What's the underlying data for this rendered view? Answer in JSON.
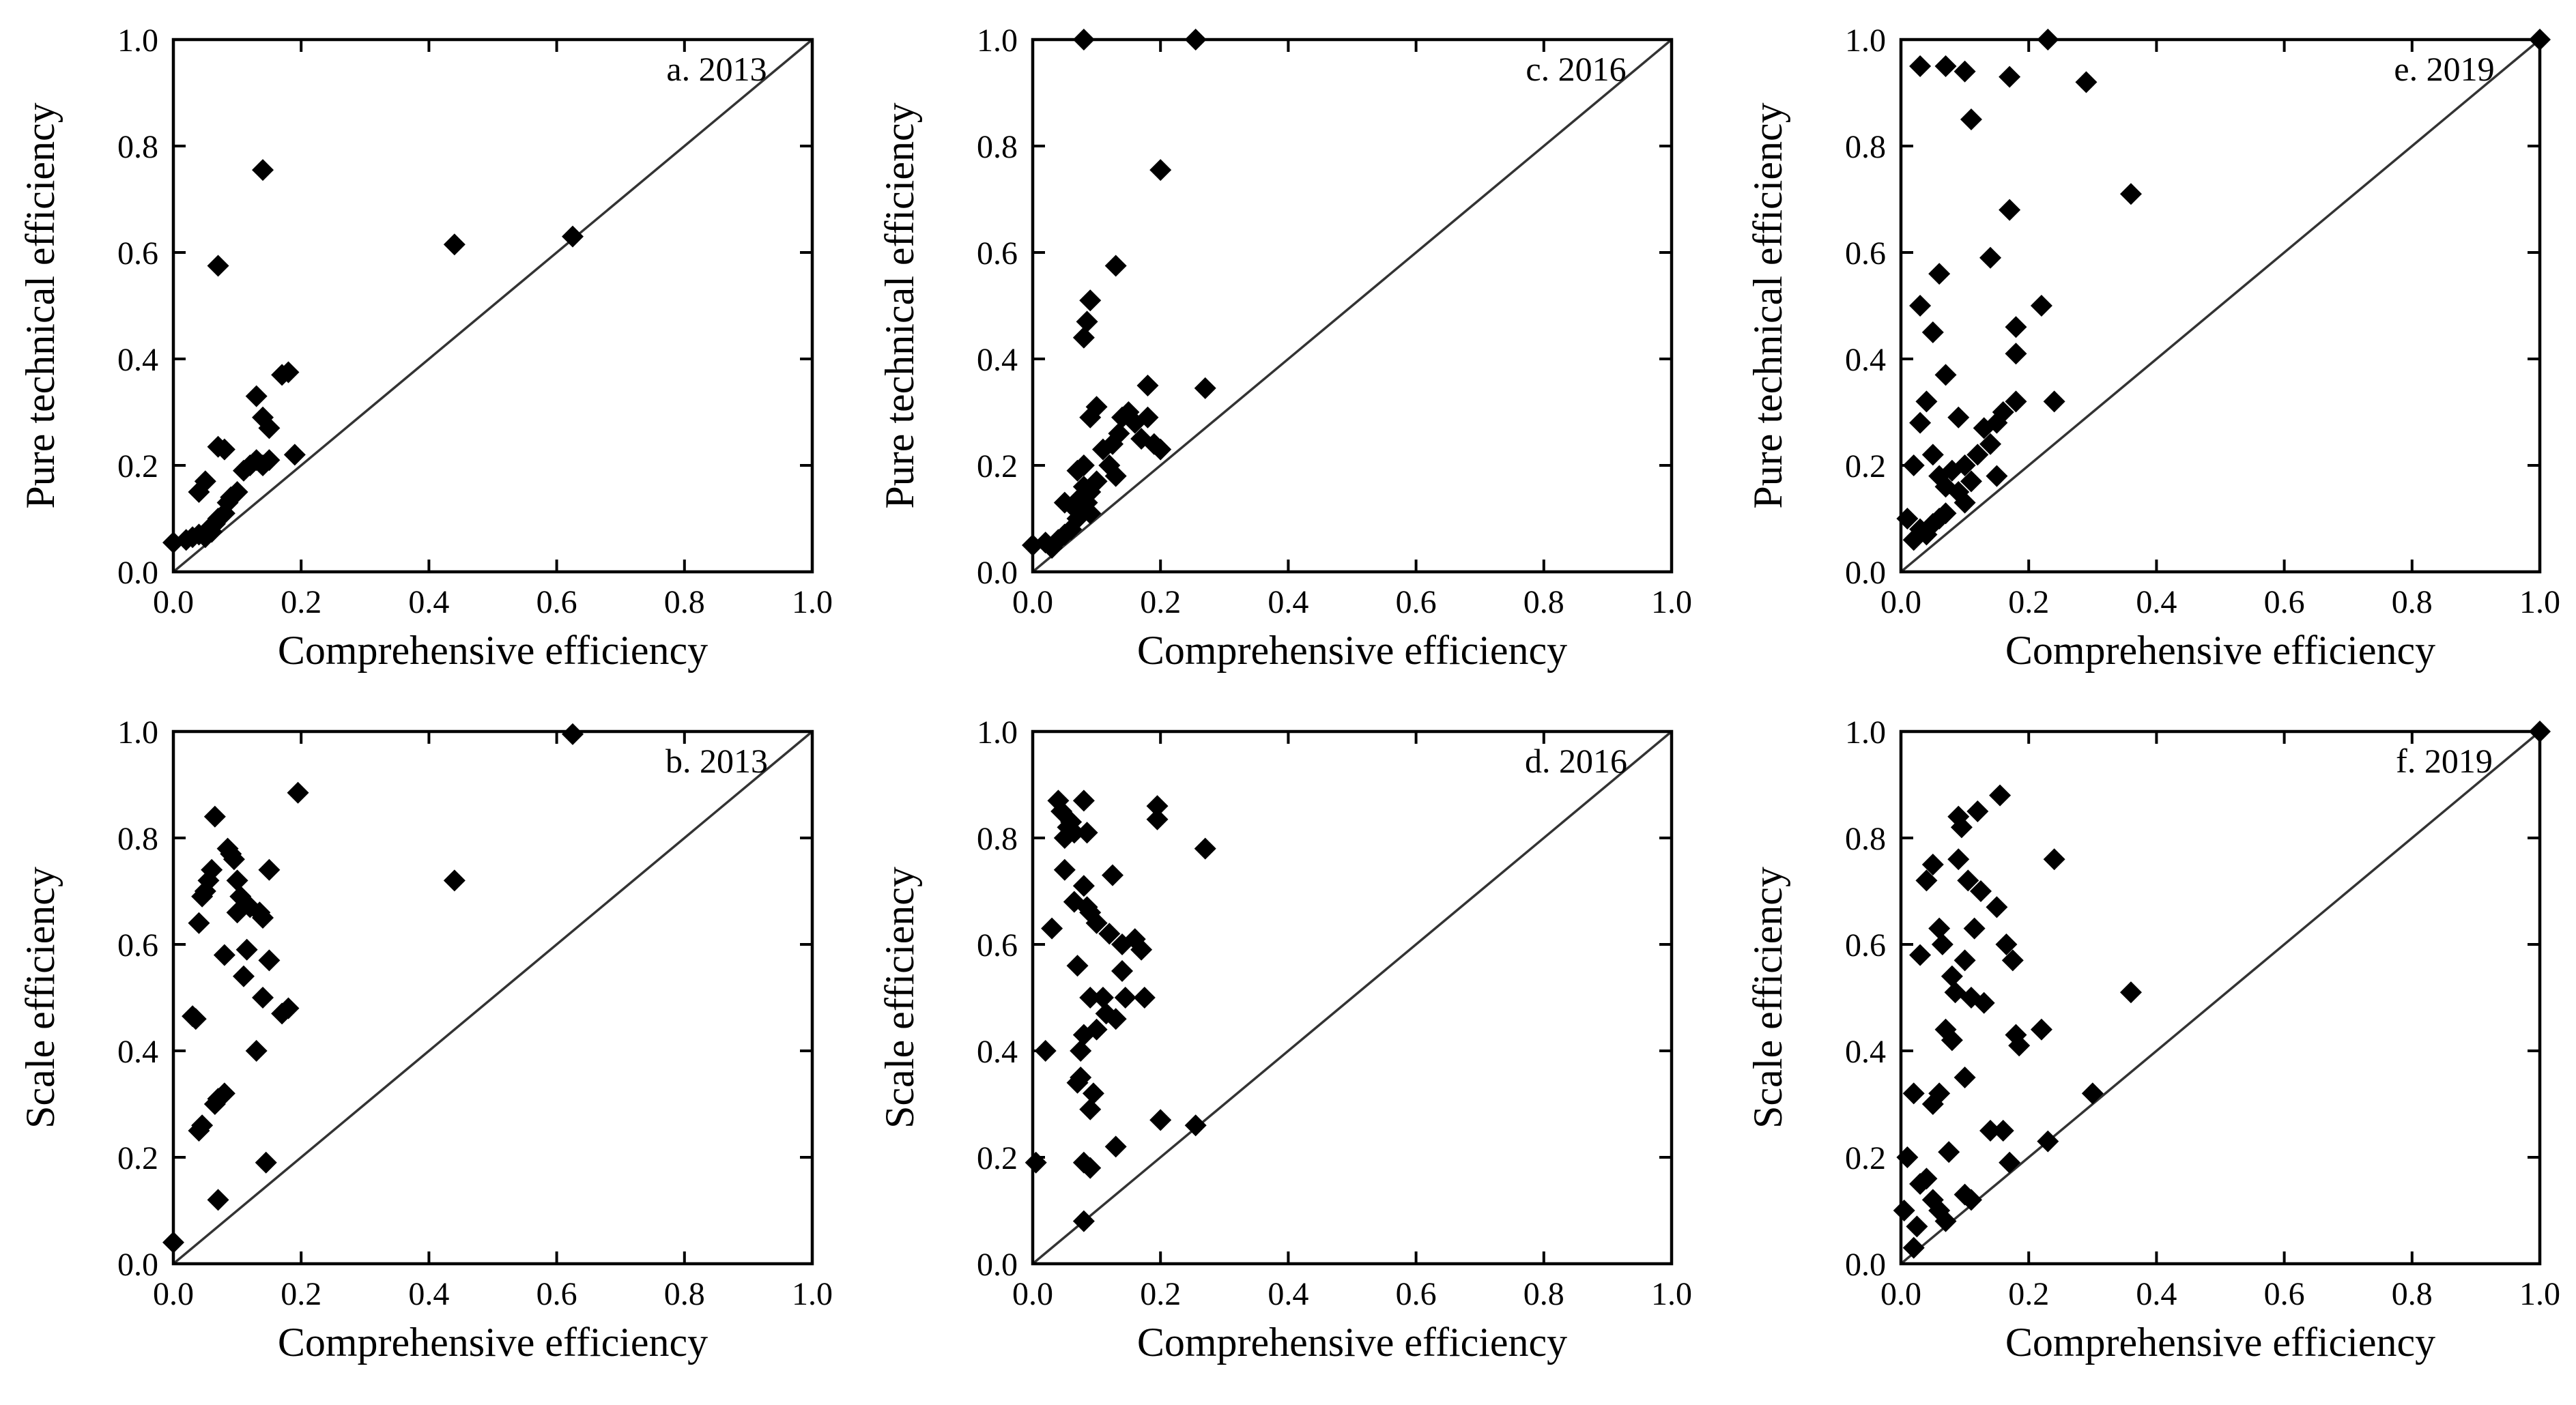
{
  "chart_data": [
    {
      "type": "scatter",
      "title": "a. 2013",
      "xlabel": "Comprehensive efficiency",
      "ylabel": "Pure technical efficiency",
      "xlim": [
        0,
        1
      ],
      "ylim": [
        0,
        1
      ],
      "xticks": [
        "0.0",
        "0.2",
        "0.4",
        "0.6",
        "0.8",
        "1.0"
      ],
      "yticks": [
        "0.0",
        "0.2",
        "0.4",
        "0.6",
        "0.8",
        "1.0"
      ],
      "diagonal": true,
      "points": [
        [
          0.0,
          0.055
        ],
        [
          0.02,
          0.06
        ],
        [
          0.03,
          0.065
        ],
        [
          0.04,
          0.07
        ],
        [
          0.05,
          0.065
        ],
        [
          0.055,
          0.08
        ],
        [
          0.06,
          0.075
        ],
        [
          0.065,
          0.09
        ],
        [
          0.07,
          0.1
        ],
        [
          0.08,
          0.11
        ],
        [
          0.085,
          0.13
        ],
        [
          0.09,
          0.14
        ],
        [
          0.1,
          0.15
        ],
        [
          0.11,
          0.19
        ],
        [
          0.12,
          0.2
        ],
        [
          0.13,
          0.21
        ],
        [
          0.14,
          0.2
        ],
        [
          0.15,
          0.21
        ],
        [
          0.13,
          0.33
        ],
        [
          0.14,
          0.29
        ],
        [
          0.15,
          0.27
        ],
        [
          0.17,
          0.37
        ],
        [
          0.18,
          0.375
        ],
        [
          0.19,
          0.22
        ],
        [
          0.07,
          0.235
        ],
        [
          0.08,
          0.23
        ],
        [
          0.04,
          0.15
        ],
        [
          0.05,
          0.17
        ],
        [
          0.07,
          0.575
        ],
        [
          0.14,
          0.755
        ],
        [
          0.44,
          0.615
        ],
        [
          0.625,
          0.63
        ]
      ]
    },
    {
      "type": "scatter",
      "title": "b. 2013",
      "xlabel": "Comprehensive efficiency",
      "ylabel": "Scale efficiency",
      "xlim": [
        0,
        1
      ],
      "ylim": [
        0,
        1
      ],
      "xticks": [
        "0.0",
        "0.2",
        "0.4",
        "0.6",
        "0.8",
        "1.0"
      ],
      "yticks": [
        "0.0",
        "0.2",
        "0.4",
        "0.6",
        "0.8",
        "1.0"
      ],
      "diagonal": true,
      "points": [
        [
          0.0,
          0.04
        ],
        [
          0.03,
          0.465
        ],
        [
          0.035,
          0.46
        ],
        [
          0.04,
          0.25
        ],
        [
          0.045,
          0.26
        ],
        [
          0.04,
          0.64
        ],
        [
          0.045,
          0.69
        ],
        [
          0.05,
          0.7
        ],
        [
          0.055,
          0.72
        ],
        [
          0.06,
          0.74
        ],
        [
          0.065,
          0.84
        ],
        [
          0.065,
          0.3
        ],
        [
          0.07,
          0.31
        ],
        [
          0.07,
          0.12
        ],
        [
          0.08,
          0.32
        ],
        [
          0.08,
          0.58
        ],
        [
          0.085,
          0.78
        ],
        [
          0.09,
          0.77
        ],
        [
          0.095,
          0.76
        ],
        [
          0.1,
          0.72
        ],
        [
          0.1,
          0.66
        ],
        [
          0.105,
          0.69
        ],
        [
          0.11,
          0.54
        ],
        [
          0.115,
          0.59
        ],
        [
          0.12,
          0.67
        ],
        [
          0.13,
          0.4
        ],
        [
          0.135,
          0.66
        ],
        [
          0.14,
          0.65
        ],
        [
          0.14,
          0.5
        ],
        [
          0.145,
          0.19
        ],
        [
          0.15,
          0.74
        ],
        [
          0.15,
          0.57
        ],
        [
          0.17,
          0.47
        ],
        [
          0.18,
          0.48
        ],
        [
          0.195,
          0.885
        ],
        [
          0.44,
          0.72
        ],
        [
          0.625,
          0.995
        ]
      ]
    },
    {
      "type": "scatter",
      "title": "c. 2016",
      "xlabel": "Comprehensive efficiency",
      "ylabel": "Pure technical efficiency",
      "xlim": [
        0,
        1
      ],
      "ylim": [
        0,
        1
      ],
      "xticks": [
        "0.0",
        "0.2",
        "0.4",
        "0.6",
        "0.8",
        "1.0"
      ],
      "yticks": [
        "0.0",
        "0.2",
        "0.4",
        "0.6",
        "0.8",
        "1.0"
      ],
      "diagonal": true,
      "points": [
        [
          0.0,
          0.05
        ],
        [
          0.02,
          0.055
        ],
        [
          0.03,
          0.045
        ],
        [
          0.04,
          0.06
        ],
        [
          0.05,
          0.07
        ],
        [
          0.05,
          0.13
        ],
        [
          0.06,
          0.08
        ],
        [
          0.065,
          0.12
        ],
        [
          0.07,
          0.1
        ],
        [
          0.07,
          0.19
        ],
        [
          0.075,
          0.14
        ],
        [
          0.08,
          0.16
        ],
        [
          0.08,
          0.2
        ],
        [
          0.085,
          0.13
        ],
        [
          0.09,
          0.11
        ],
        [
          0.09,
          0.15
        ],
        [
          0.1,
          0.17
        ],
        [
          0.11,
          0.23
        ],
        [
          0.12,
          0.2
        ],
        [
          0.125,
          0.24
        ],
        [
          0.13,
          0.18
        ],
        [
          0.135,
          0.26
        ],
        [
          0.14,
          0.29
        ],
        [
          0.15,
          0.3
        ],
        [
          0.16,
          0.28
        ],
        [
          0.17,
          0.25
        ],
        [
          0.18,
          0.29
        ],
        [
          0.19,
          0.24
        ],
        [
          0.2,
          0.23
        ],
        [
          0.18,
          0.35
        ],
        [
          0.27,
          0.345
        ],
        [
          0.09,
          0.29
        ],
        [
          0.1,
          0.31
        ],
        [
          0.08,
          0.44
        ],
        [
          0.085,
          0.47
        ],
        [
          0.09,
          0.51
        ],
        [
          0.13,
          0.575
        ],
        [
          0.2,
          0.755
        ],
        [
          0.08,
          1.0
        ],
        [
          0.255,
          1.0
        ]
      ]
    },
    {
      "type": "scatter",
      "title": "d. 2016",
      "xlabel": "Comprehensive efficiency",
      "ylabel": "Scale efficiency",
      "xlim": [
        0,
        1
      ],
      "ylim": [
        0,
        1
      ],
      "xticks": [
        "0.0",
        "0.2",
        "0.4",
        "0.6",
        "0.8",
        "1.0"
      ],
      "yticks": [
        "0.0",
        "0.2",
        "0.4",
        "0.6",
        "0.8",
        "1.0"
      ],
      "diagonal": true,
      "points": [
        [
          0.005,
          0.19
        ],
        [
          0.02,
          0.4
        ],
        [
          0.03,
          0.63
        ],
        [
          0.04,
          0.87
        ],
        [
          0.045,
          0.85
        ],
        [
          0.05,
          0.8
        ],
        [
          0.05,
          0.74
        ],
        [
          0.055,
          0.82
        ],
        [
          0.06,
          0.83
        ],
        [
          0.065,
          0.68
        ],
        [
          0.065,
          0.81
        ],
        [
          0.07,
          0.56
        ],
        [
          0.07,
          0.34
        ],
        [
          0.075,
          0.35
        ],
        [
          0.075,
          0.4
        ],
        [
          0.08,
          0.43
        ],
        [
          0.08,
          0.71
        ],
        [
          0.08,
          0.87
        ],
        [
          0.085,
          0.81
        ],
        [
          0.085,
          0.67
        ],
        [
          0.09,
          0.66
        ],
        [
          0.09,
          0.5
        ],
        [
          0.09,
          0.29
        ],
        [
          0.095,
          0.32
        ],
        [
          0.08,
          0.19
        ],
        [
          0.09,
          0.18
        ],
        [
          0.08,
          0.08
        ],
        [
          0.1,
          0.44
        ],
        [
          0.1,
          0.64
        ],
        [
          0.11,
          0.5
        ],
        [
          0.115,
          0.47
        ],
        [
          0.12,
          0.62
        ],
        [
          0.125,
          0.73
        ],
        [
          0.13,
          0.22
        ],
        [
          0.13,
          0.46
        ],
        [
          0.14,
          0.6
        ],
        [
          0.14,
          0.55
        ],
        [
          0.145,
          0.5
        ],
        [
          0.16,
          0.61
        ],
        [
          0.17,
          0.59
        ],
        [
          0.175,
          0.5
        ],
        [
          0.195,
          0.86
        ],
        [
          0.195,
          0.835
        ],
        [
          0.2,
          0.27
        ],
        [
          0.255,
          0.26
        ],
        [
          0.27,
          0.78
        ]
      ]
    },
    {
      "type": "scatter",
      "title": "e. 2019",
      "xlabel": "Comprehensive efficiency",
      "ylabel": "Pure technical efficiency",
      "xlim": [
        0,
        1
      ],
      "ylim": [
        0,
        1
      ],
      "xticks": [
        "0.0",
        "0.2",
        "0.4",
        "0.6",
        "0.8",
        "1.0"
      ],
      "yticks": [
        "0.0",
        "0.2",
        "0.4",
        "0.6",
        "0.8",
        "1.0"
      ],
      "diagonal": true,
      "points": [
        [
          0.01,
          0.1
        ],
        [
          0.02,
          0.06
        ],
        [
          0.03,
          0.08
        ],
        [
          0.04,
          0.07
        ],
        [
          0.05,
          0.09
        ],
        [
          0.06,
          0.1
        ],
        [
          0.07,
          0.11
        ],
        [
          0.02,
          0.2
        ],
        [
          0.03,
          0.28
        ],
        [
          0.04,
          0.32
        ],
        [
          0.05,
          0.22
        ],
        [
          0.06,
          0.18
        ],
        [
          0.07,
          0.16
        ],
        [
          0.08,
          0.19
        ],
        [
          0.09,
          0.15
        ],
        [
          0.1,
          0.13
        ],
        [
          0.1,
          0.2
        ],
        [
          0.11,
          0.17
        ],
        [
          0.12,
          0.22
        ],
        [
          0.13,
          0.27
        ],
        [
          0.14,
          0.24
        ],
        [
          0.15,
          0.28
        ],
        [
          0.15,
          0.18
        ],
        [
          0.16,
          0.3
        ],
        [
          0.18,
          0.41
        ],
        [
          0.18,
          0.46
        ],
        [
          0.18,
          0.32
        ],
        [
          0.22,
          0.5
        ],
        [
          0.24,
          0.32
        ],
        [
          0.03,
          0.5
        ],
        [
          0.05,
          0.45
        ],
        [
          0.06,
          0.56
        ],
        [
          0.07,
          0.37
        ],
        [
          0.09,
          0.29
        ],
        [
          0.14,
          0.59
        ],
        [
          0.17,
          0.68
        ],
        [
          0.36,
          0.71
        ],
        [
          0.11,
          0.85
        ],
        [
          0.03,
          0.95
        ],
        [
          0.07,
          0.95
        ],
        [
          0.1,
          0.94
        ],
        [
          0.17,
          0.93
        ],
        [
          0.29,
          0.92
        ],
        [
          0.23,
          1.0
        ],
        [
          1.0,
          1.0
        ]
      ]
    },
    {
      "type": "scatter",
      "title": "f. 2019",
      "xlabel": "Comprehensive efficiency",
      "ylabel": "Scale efficiency",
      "xlim": [
        0,
        1
      ],
      "ylim": [
        0,
        1
      ],
      "xticks": [
        "0.0",
        "0.2",
        "0.4",
        "0.6",
        "0.8",
        "1.0"
      ],
      "yticks": [
        "0.0",
        "0.2",
        "0.4",
        "0.6",
        "0.8",
        "1.0"
      ],
      "diagonal": true,
      "points": [
        [
          0.005,
          0.1
        ],
        [
          0.01,
          0.2
        ],
        [
          0.02,
          0.03
        ],
        [
          0.025,
          0.07
        ],
        [
          0.03,
          0.15
        ],
        [
          0.04,
          0.16
        ],
        [
          0.05,
          0.12
        ],
        [
          0.06,
          0.1
        ],
        [
          0.07,
          0.08
        ],
        [
          0.02,
          0.32
        ],
        [
          0.05,
          0.3
        ],
        [
          0.06,
          0.32
        ],
        [
          0.075,
          0.21
        ],
        [
          0.1,
          0.13
        ],
        [
          0.11,
          0.12
        ],
        [
          0.1,
          0.35
        ],
        [
          0.03,
          0.58
        ],
        [
          0.04,
          0.72
        ],
        [
          0.05,
          0.75
        ],
        [
          0.06,
          0.63
        ],
        [
          0.065,
          0.6
        ],
        [
          0.07,
          0.44
        ],
        [
          0.08,
          0.42
        ],
        [
          0.08,
          0.54
        ],
        [
          0.085,
          0.51
        ],
        [
          0.09,
          0.76
        ],
        [
          0.09,
          0.84
        ],
        [
          0.095,
          0.82
        ],
        [
          0.1,
          0.57
        ],
        [
          0.105,
          0.72
        ],
        [
          0.11,
          0.5
        ],
        [
          0.115,
          0.63
        ],
        [
          0.12,
          0.85
        ],
        [
          0.125,
          0.7
        ],
        [
          0.13,
          0.49
        ],
        [
          0.14,
          0.25
        ],
        [
          0.15,
          0.67
        ],
        [
          0.155,
          0.88
        ],
        [
          0.16,
          0.25
        ],
        [
          0.165,
          0.6
        ],
        [
          0.17,
          0.19
        ],
        [
          0.175,
          0.57
        ],
        [
          0.18,
          0.43
        ],
        [
          0.185,
          0.41
        ],
        [
          0.22,
          0.44
        ],
        [
          0.23,
          0.23
        ],
        [
          0.24,
          0.76
        ],
        [
          0.3,
          0.32
        ],
        [
          0.36,
          0.51
        ],
        [
          1.0,
          1.0
        ]
      ]
    }
  ]
}
